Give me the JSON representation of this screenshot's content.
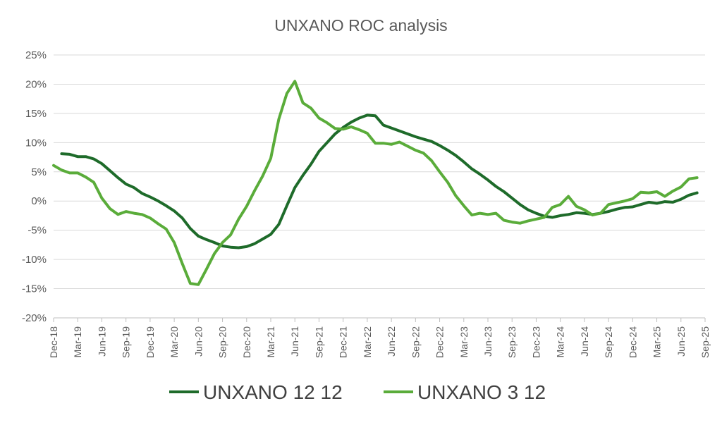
{
  "chart_data": {
    "type": "line",
    "title": "UNXANO ROC analysis",
    "xlabel": "",
    "ylabel": "",
    "ylim": [
      -20,
      25
    ],
    "y_ticks": [
      "25%",
      "20%",
      "15%",
      "10%",
      "5%",
      "0%",
      "-5%",
      "-10%",
      "-15%",
      "-20%"
    ],
    "y_tick_values": [
      25,
      20,
      15,
      10,
      5,
      0,
      -5,
      -10,
      -15,
      -20
    ],
    "x_tick_labels": [
      "Dec-18",
      "Mar-19",
      "Jun-19",
      "Sep-19",
      "Dec-19",
      "Mar-20",
      "Jun-20",
      "Sep-20",
      "Dec-20",
      "Mar-21",
      "Jun-21",
      "Sep-21",
      "Dec-21",
      "Mar-22",
      "Jun-22",
      "Sep-22",
      "Dec-22",
      "Mar-23",
      "Jun-23",
      "Sep-23",
      "Dec-23",
      "Mar-24",
      "Jun-24",
      "Sep-24",
      "Dec-24",
      "Mar-25",
      "Jun-25",
      "Sep-25"
    ],
    "x_range_months": [
      0,
      81
    ],
    "grid": true,
    "legend_position": "bottom",
    "series": [
      {
        "name": "UNXANO 12 12",
        "color": "#1e6b2a",
        "x": [
          1,
          2,
          3,
          4,
          5,
          6,
          7,
          8,
          9,
          10,
          11,
          12,
          13,
          14,
          15,
          16,
          17,
          18,
          19,
          20,
          21,
          22,
          23,
          24,
          25,
          26,
          27,
          28,
          29,
          30,
          31,
          32,
          33,
          34,
          35,
          36,
          37,
          38,
          39,
          40,
          41,
          42,
          43,
          44,
          45,
          46,
          47,
          48,
          49,
          50,
          51,
          52,
          53,
          54,
          55,
          56,
          57,
          58,
          59,
          60,
          61,
          62,
          63,
          64,
          65,
          66,
          67,
          68,
          69,
          70,
          71,
          72,
          73,
          74,
          75,
          76,
          77,
          78,
          79,
          80
        ],
        "values": [
          8.1,
          8.0,
          7.6,
          7.6,
          7.2,
          6.4,
          5.2,
          4.0,
          2.9,
          2.3,
          1.3,
          0.7,
          0.0,
          -0.8,
          -1.7,
          -2.9,
          -4.7,
          -6.0,
          -6.6,
          -7.1,
          -7.7,
          -7.9,
          -8.0,
          -7.8,
          -7.3,
          -6.5,
          -5.7,
          -4.0,
          -0.8,
          2.3,
          4.4,
          6.3,
          8.5,
          10.0,
          11.5,
          12.6,
          13.5,
          14.2,
          14.7,
          14.6,
          13.0,
          12.5,
          12.0,
          11.5,
          11.0,
          10.6,
          10.2,
          9.5,
          8.7,
          7.8,
          6.7,
          5.5,
          4.6,
          3.6,
          2.5,
          1.6,
          0.5,
          -0.6,
          -1.5,
          -2.1,
          -2.6,
          -2.8,
          -2.5,
          -2.3,
          -2.0,
          -2.1,
          -2.3,
          -2.1,
          -1.8,
          -1.4,
          -1.1,
          -1.0,
          -0.6,
          -0.2,
          -0.4,
          -0.1,
          -0.2,
          0.3,
          1.0,
          1.4
        ]
      },
      {
        "name": "UNXANO 3 12",
        "color": "#5aac3a",
        "x": [
          0,
          1,
          2,
          3,
          4,
          5,
          6,
          7,
          8,
          9,
          10,
          11,
          12,
          13,
          14,
          15,
          16,
          17,
          18,
          19,
          20,
          21,
          22,
          23,
          24,
          25,
          26,
          27,
          28,
          29,
          30,
          31,
          32,
          33,
          34,
          35,
          36,
          37,
          38,
          39,
          40,
          41,
          42,
          43,
          44,
          45,
          46,
          47,
          48,
          49,
          50,
          51,
          52,
          53,
          54,
          55,
          56,
          57,
          58,
          59,
          60,
          61,
          62,
          63,
          64,
          65,
          66,
          67,
          68,
          69,
          70,
          71,
          72,
          73,
          74,
          75,
          76,
          77,
          78,
          79,
          80
        ],
        "values": [
          6.1,
          5.3,
          4.8,
          4.8,
          4.1,
          3.2,
          0.5,
          -1.3,
          -2.3,
          -1.8,
          -2.1,
          -2.3,
          -2.9,
          -3.9,
          -4.8,
          -7.1,
          -10.7,
          -14.1,
          -14.3,
          -11.7,
          -9.0,
          -7.1,
          -5.8,
          -3.1,
          -0.9,
          1.8,
          4.3,
          7.3,
          14.0,
          18.4,
          20.5,
          16.8,
          15.9,
          14.2,
          13.4,
          12.4,
          12.3,
          12.7,
          12.2,
          11.6,
          9.9,
          9.9,
          9.7,
          10.1,
          9.4,
          8.7,
          8.2,
          6.9,
          5.0,
          3.2,
          0.9,
          -0.8,
          -2.4,
          -2.1,
          -2.3,
          -2.1,
          -3.3,
          -3.6,
          -3.8,
          -3.4,
          -3.1,
          -2.8,
          -1.1,
          -0.6,
          0.8,
          -0.9,
          -1.5,
          -2.4,
          -2.1,
          -0.6,
          -0.3,
          0.0,
          0.4,
          1.5,
          1.4,
          1.6,
          0.8,
          1.7,
          2.4,
          3.8,
          4.0
        ]
      }
    ]
  }
}
